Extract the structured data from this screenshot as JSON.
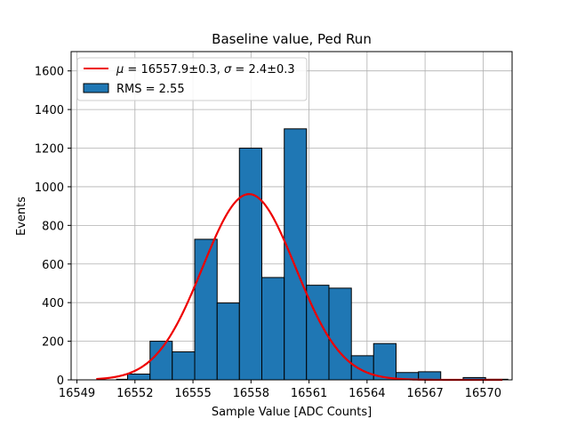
{
  "chart_data": {
    "type": "bar",
    "title": "Baseline value, Ped Run",
    "xlabel": "Sample Value [ADC Counts]",
    "ylabel": "Events",
    "xlim": [
      16548.7,
      16571.5
    ],
    "ylim": [
      0,
      1700
    ],
    "xticks": [
      16549,
      16552,
      16555,
      16558,
      16561,
      16564,
      16567,
      16570
    ],
    "yticks": [
      0,
      200,
      400,
      600,
      800,
      1000,
      1200,
      1400,
      1600
    ],
    "grid": true,
    "legend_position": "top-left",
    "bins": [
      {
        "x0": 16551.05,
        "x1": 16551.62,
        "value": 3
      },
      {
        "x0": 16551.62,
        "x1": 16552.78,
        "value": 30
      },
      {
        "x0": 16552.78,
        "x1": 16553.93,
        "value": 200
      },
      {
        "x0": 16553.93,
        "x1": 16555.09,
        "value": 145
      },
      {
        "x0": 16555.09,
        "x1": 16556.25,
        "value": 728
      },
      {
        "x0": 16556.25,
        "x1": 16557.4,
        "value": 398
      },
      {
        "x0": 16557.4,
        "x1": 16558.56,
        "value": 1200
      },
      {
        "x0": 16558.56,
        "x1": 16559.72,
        "value": 530
      },
      {
        "x0": 16559.72,
        "x1": 16560.87,
        "value": 1300
      },
      {
        "x0": 16560.87,
        "x1": 16562.03,
        "value": 490
      },
      {
        "x0": 16562.03,
        "x1": 16563.19,
        "value": 475
      },
      {
        "x0": 16563.19,
        "x1": 16564.34,
        "value": 125
      },
      {
        "x0": 16564.34,
        "x1": 16565.5,
        "value": 188
      },
      {
        "x0": 16565.5,
        "x1": 16566.66,
        "value": 38
      },
      {
        "x0": 16566.66,
        "x1": 16567.81,
        "value": 42
      },
      {
        "x0": 16567.81,
        "x1": 16568.97,
        "value": 0
      },
      {
        "x0": 16568.97,
        "x1": 16570.13,
        "value": 12
      },
      {
        "x0": 16570.13,
        "x1": 16571.28,
        "value": 3
      }
    ],
    "fit": {
      "mu": 16557.9,
      "sigma": 2.4,
      "amplitude": 962,
      "x_range": [
        16550.0,
        16571.0
      ],
      "color": "#ee0000"
    },
    "bar_color": "#1f77b4",
    "legend": {
      "fit_label_mu": "μ",
      "fit_label_mu_value": " = 16557.9±0.3, ",
      "fit_label_sigma": "σ",
      "fit_label_sigma_value": " = 2.4±0.3",
      "hist_label": "RMS = 2.55"
    }
  }
}
